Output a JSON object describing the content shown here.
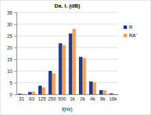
{
  "chart_data": {
    "type": "bar",
    "title": "Da. I. (dB)",
    "x_label": "f(Hz)",
    "categories": [
      "31",
      "63",
      "125",
      "250",
      "500",
      "1k",
      "2k",
      "4k",
      "8k",
      "16k"
    ],
    "series": [
      {
        "name": "R",
        "color": "#1f3a93",
        "values": [
          0.3,
          1.0,
          3.7,
          10.0,
          21.8,
          26.0,
          16.0,
          5.5,
          1.8,
          0.4
        ]
      },
      {
        "name": "RA'",
        "color": "#f4a256",
        "values": [
          0.2,
          1.2,
          3.0,
          9.0,
          21.0,
          28.0,
          15.5,
          5.2,
          1.7,
          0.2
        ]
      }
    ],
    "ylim": [
      0,
      35
    ],
    "yticks": [
      0,
      5,
      10,
      15,
      20,
      25,
      30,
      35
    ],
    "grid": true,
    "legend": "right"
  }
}
